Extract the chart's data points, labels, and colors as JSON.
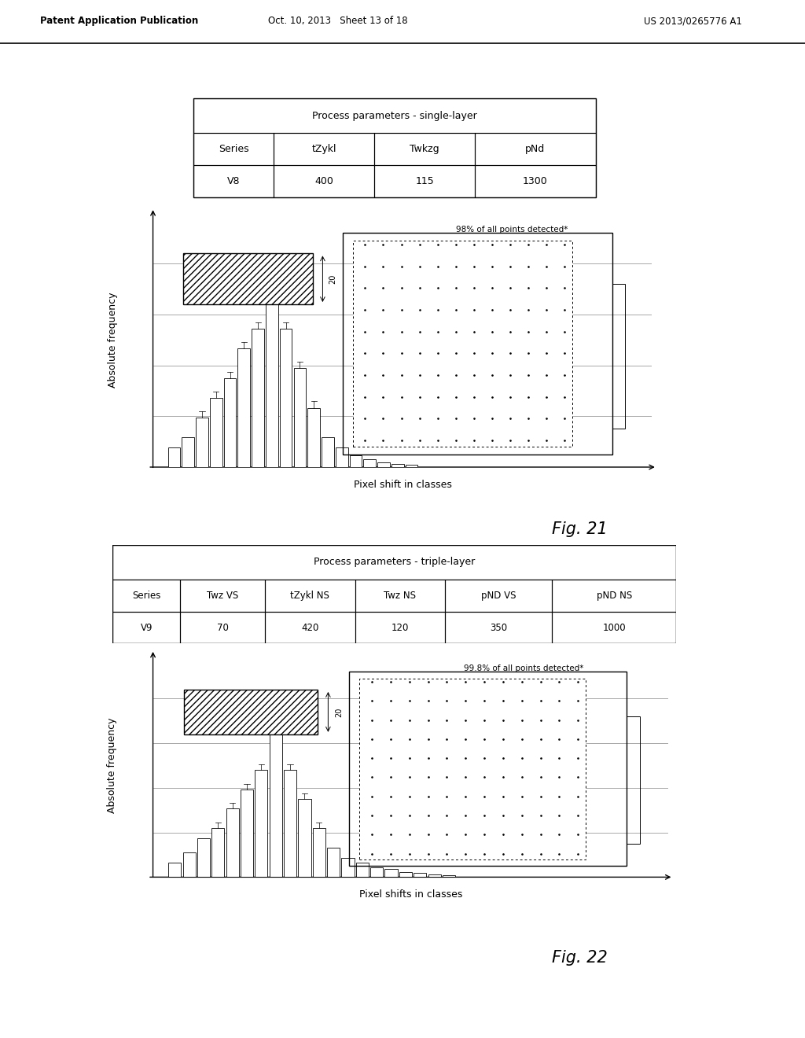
{
  "bg_color": "#ffffff",
  "header_left": "Patent Application Publication",
  "header_center": "Oct. 10, 2013   Sheet 13 of 18",
  "header_right": "US 2013/0265776 A1",
  "fig21_table_title": "Process parameters - single-layer",
  "fig21_table_headers": [
    "Series",
    "tZykl",
    "Twkzg",
    "pNd"
  ],
  "fig21_table_values": [
    "V8",
    "400",
    "115",
    "1300"
  ],
  "fig21_ylabel": "Absolute frequency",
  "fig21_xlabel": "Pixel shift in classes",
  "fig21_annotation": "98% of all points detected*",
  "fig21_label": "20",
  "fig21_caption": "Fig. 21",
  "fig22_table_title": "Process parameters - triple-layer",
  "fig22_table_headers": [
    "Series",
    "Twz VS",
    "tZykl NS",
    "Twz NS",
    "pND VS",
    "pND NS"
  ],
  "fig22_table_values": [
    "V9",
    "70",
    "420",
    "120",
    "350",
    "1000"
  ],
  "fig22_ylabel": "Absolute frequency",
  "fig22_xlabel": "Pixel shifts in classes",
  "fig22_annotation": "99.8% of all points detected*",
  "fig22_label": "20",
  "fig22_caption": "Fig. 22",
  "fig21_bar_heights": [
    2,
    3,
    5,
    7,
    9,
    12,
    14,
    18,
    14,
    10,
    6,
    3,
    2,
    1.2,
    0.8,
    0.5,
    0.3,
    0.2
  ],
  "fig22_bar_heights": [
    1.5,
    2.5,
    4,
    5,
    7,
    9,
    11,
    16,
    11,
    8,
    5,
    3,
    2,
    1.5,
    1,
    0.8,
    0.5,
    0.4,
    0.3,
    0.2
  ]
}
